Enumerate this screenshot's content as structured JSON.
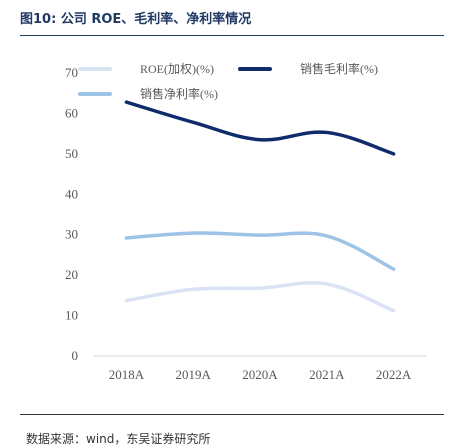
{
  "figure": {
    "title": "图10: 公司 ROE、毛利率、净利率情况",
    "source": "数据来源：wind，东吴证券研究所"
  },
  "chart_data": {
    "type": "line",
    "categories": [
      "2018A",
      "2019A",
      "2020A",
      "2021A",
      "2022A"
    ],
    "series": [
      {
        "name": "ROE(加权)(%)",
        "values": [
          13.7,
          16.5,
          16.8,
          17.8,
          11.2
        ],
        "color": "#dae3f3"
      },
      {
        "name": "销售毛利率(%)",
        "values": [
          62.8,
          57.8,
          53.5,
          55.3,
          50.0
        ],
        "color": "#0f2b6b"
      },
      {
        "name": "销售净利率(%)",
        "values": [
          29.2,
          30.4,
          29.9,
          29.7,
          21.5
        ],
        "color": "#9dc3e6"
      }
    ],
    "ylim": [
      0,
      70
    ],
    "yticks": [
      0,
      10,
      20,
      30,
      40,
      50,
      60,
      70
    ],
    "grid": false,
    "legend": "top",
    "smooth": true
  }
}
